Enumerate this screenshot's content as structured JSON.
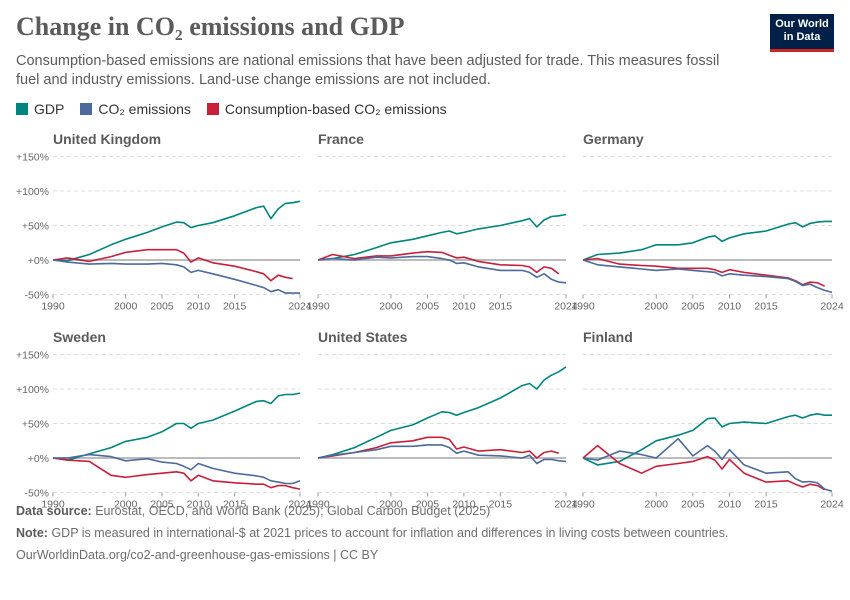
{
  "title": "Change in CO₂ emissions and GDP",
  "subtitle": "Consumption-based emissions are national emissions that have been adjusted for trade. This measures fossil fuel and industry emissions. Land-use change emissions are not included.",
  "logo": "Our World in Data",
  "footer": {
    "source_label": "Data source:",
    "source": "Eurostat, OECD, and World Bank (2025); Global Carbon Budget (2025)",
    "note_label": "Note:",
    "note": "GDP is measured in international-$ at 2021 prices to account for inflation and differences in living costs between countries.",
    "url": "OurWorldinData.org/co2-and-greenhouse-gas-emissions | CC BY"
  },
  "chart_data": {
    "type": "line",
    "legend": [
      {
        "name": "GDP",
        "color": "#00847e"
      },
      {
        "name": "CO₂ emissions",
        "color": "#4c6a9c"
      },
      {
        "name": "Consumption-based CO₂ emissions",
        "color": "#c8203b"
      }
    ],
    "legend_placement": "top-left",
    "ylim": [
      -50,
      150
    ],
    "yticks": [
      "+150%",
      "+100%",
      "+50%",
      "+0%",
      "-50%"
    ],
    "ytick_values": [
      150,
      100,
      50,
      0,
      -50
    ],
    "xticks": [
      "1990",
      "2000",
      "2005",
      "2010",
      "2015",
      "2024"
    ],
    "xtick_values": [
      1990,
      2000,
      2005,
      2010,
      2015,
      2024
    ],
    "grid": true,
    "x": [
      1990,
      1992,
      1995,
      1998,
      2000,
      2003,
      2005,
      2007,
      2008,
      2009,
      2010,
      2012,
      2015,
      2018,
      2019,
      2020,
      2021,
      2022,
      2023,
      2024
    ],
    "panels": [
      {
        "title": "United Kingdom",
        "series": [
          [
            0,
            -1,
            8,
            22,
            30,
            40,
            48,
            55,
            54,
            47,
            50,
            54,
            64,
            76,
            78,
            60,
            74,
            82,
            83,
            85
          ],
          [
            0,
            -3,
            -6,
            -5,
            -6,
            -6,
            -5,
            -7,
            -10,
            -18,
            -15,
            -20,
            -28,
            -37,
            -40,
            -46,
            -43,
            -48,
            -48,
            -48
          ],
          [
            0,
            3,
            -2,
            5,
            11,
            15,
            15,
            15,
            10,
            -3,
            3,
            -4,
            -9,
            -17,
            -20,
            -30,
            -22,
            -25,
            -27,
            null
          ]
        ]
      },
      {
        "title": "France",
        "series": [
          [
            0,
            2,
            8,
            18,
            25,
            30,
            35,
            40,
            42,
            38,
            40,
            45,
            50,
            57,
            60,
            48,
            58,
            63,
            64,
            66
          ],
          [
            0,
            2,
            0,
            4,
            3,
            5,
            5,
            2,
            0,
            -5,
            -4,
            -10,
            -15,
            -15,
            -18,
            -25,
            -20,
            -28,
            -32,
            -33
          ],
          [
            0,
            8,
            2,
            6,
            6,
            10,
            12,
            11,
            7,
            3,
            4,
            -2,
            -7,
            -8,
            -10,
            -18,
            -10,
            -12,
            -20,
            null
          ]
        ]
      },
      {
        "title": "Germany",
        "series": [
          [
            0,
            8,
            10,
            15,
            22,
            22,
            25,
            33,
            35,
            27,
            32,
            38,
            42,
            52,
            54,
            48,
            53,
            55,
            56,
            56
          ],
          [
            0,
            -7,
            -10,
            -13,
            -15,
            -13,
            -15,
            -17,
            -18,
            -23,
            -20,
            -22,
            -24,
            -27,
            -31,
            -37,
            -35,
            -40,
            -44,
            -47
          ],
          [
            0,
            2,
            -6,
            -8,
            -9,
            -12,
            -12,
            -12,
            -14,
            -18,
            -14,
            -18,
            -22,
            -26,
            -30,
            -36,
            -32,
            -33,
            -38,
            null
          ]
        ]
      },
      {
        "title": "Sweden",
        "series": [
          [
            0,
            -3,
            6,
            15,
            24,
            30,
            38,
            50,
            50,
            43,
            50,
            55,
            68,
            82,
            83,
            79,
            90,
            92,
            92,
            94
          ],
          [
            0,
            0,
            5,
            2,
            -4,
            -1,
            -6,
            -8,
            -12,
            -17,
            -8,
            -15,
            -22,
            -26,
            -28,
            -33,
            -35,
            -37,
            -37,
            -33
          ],
          [
            0,
            -3,
            -5,
            -25,
            -28,
            -24,
            -22,
            -20,
            -22,
            -33,
            -25,
            -33,
            -36,
            -38,
            -38,
            -43,
            -40,
            -40,
            -43,
            -45
          ]
        ]
      },
      {
        "title": "United States",
        "series": [
          [
            0,
            5,
            15,
            30,
            40,
            48,
            58,
            67,
            66,
            62,
            66,
            73,
            87,
            105,
            108,
            100,
            113,
            120,
            125,
            132
          ],
          [
            0,
            4,
            8,
            12,
            17,
            17,
            19,
            19,
            15,
            7,
            10,
            4,
            3,
            0,
            4,
            -8,
            -2,
            -2,
            -4,
            -5
          ],
          [
            0,
            3,
            8,
            15,
            22,
            25,
            30,
            30,
            27,
            13,
            16,
            10,
            12,
            8,
            10,
            0,
            8,
            10,
            7,
            null
          ]
        ]
      },
      {
        "title": "Finland",
        "series": [
          [
            0,
            -10,
            -5,
            12,
            25,
            33,
            40,
            57,
            58,
            45,
            50,
            52,
            50,
            60,
            62,
            58,
            62,
            64,
            62,
            62
          ],
          [
            0,
            -3,
            10,
            5,
            0,
            28,
            3,
            18,
            10,
            -2,
            12,
            -10,
            -22,
            -20,
            -30,
            -35,
            -34,
            -36,
            -45,
            -48
          ],
          [
            0,
            18,
            -8,
            -22,
            -12,
            -8,
            -5,
            2,
            -3,
            -16,
            -2,
            -22,
            -35,
            -33,
            -38,
            -42,
            -38,
            -40,
            -46,
            null
          ]
        ]
      }
    ]
  }
}
